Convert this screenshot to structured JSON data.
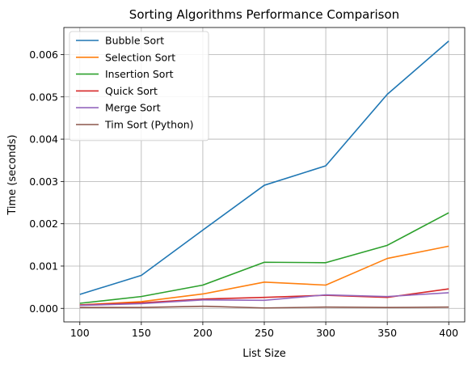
{
  "chart_data": {
    "type": "line",
    "title": "Sorting Algorithms Performance Comparison",
    "xlabel": "List Size",
    "ylabel": "Time (seconds)",
    "x": [
      100,
      150,
      200,
      250,
      300,
      350,
      400
    ],
    "xticks": [
      "100",
      "150",
      "200",
      "250",
      "300",
      "350",
      "400"
    ],
    "xlim": [
      87,
      413
    ],
    "yticks": [
      "0.000",
      "0.001",
      "0.002",
      "0.003",
      "0.004",
      "0.005",
      "0.006"
    ],
    "ytick_values": [
      0,
      0.001,
      0.002,
      0.003,
      0.004,
      0.005,
      0.006
    ],
    "ylim": [
      -0.00032,
      0.00664
    ],
    "grid": true,
    "legend_position": "upper-left",
    "series": [
      {
        "name": "Bubble Sort",
        "color": "#1f77b4",
        "values": [
          0.00033,
          0.00078,
          0.00185,
          0.00291,
          0.00337,
          0.00506,
          0.00632
        ]
      },
      {
        "name": "Selection Sort",
        "color": "#ff7f0e",
        "values": [
          8e-05,
          0.00016,
          0.00034,
          0.00062,
          0.00055,
          0.00118,
          0.00147
        ]
      },
      {
        "name": "Insertion Sort",
        "color": "#2ca02c",
        "values": [
          0.00012,
          0.00028,
          0.00055,
          0.00109,
          0.00108,
          0.00149,
          0.00226
        ]
      },
      {
        "name": "Quick Sort",
        "color": "#d62728",
        "values": [
          8e-05,
          0.00013,
          0.00022,
          0.00026,
          0.00031,
          0.00026,
          0.00046
        ]
      },
      {
        "name": "Merge Sort",
        "color": "#9467bd",
        "values": [
          7e-05,
          0.00011,
          0.0002,
          0.00019,
          0.00032,
          0.00028,
          0.00037
        ]
      },
      {
        "name": "Tim Sort (Python)",
        "color": "#8c564b",
        "values": [
          2e-05,
          2e-05,
          5e-05,
          1e-05,
          3e-05,
          2e-05,
          3e-05
        ]
      }
    ]
  }
}
